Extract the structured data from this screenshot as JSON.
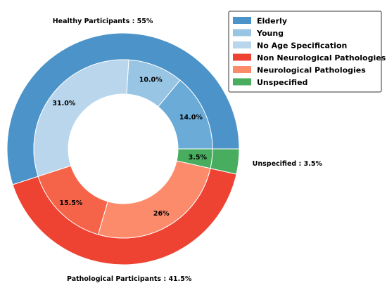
{
  "chart_data": {
    "type": "pie",
    "style": "nested-donut",
    "outer_ring": [
      {
        "name": "Healthy Participants",
        "value": 55,
        "label": "Healthy Participants : 55%",
        "color": "#4b93c9"
      },
      {
        "name": "Pathological Participants",
        "value": 41.5,
        "label": "Pathological Participants : 41.5%",
        "color": "#ee4333"
      },
      {
        "name": "Unspecified",
        "value": 3.5,
        "label": "Unspecified : 3.5%",
        "color": "#49ad5f"
      }
    ],
    "inner_ring": [
      {
        "name": "Elderly",
        "value": 14.0,
        "label": "14.0%",
        "color": "#6aabd7"
      },
      {
        "name": "Young",
        "value": 10.0,
        "label": "10.0%",
        "color": "#98c5e4"
      },
      {
        "name": "No Age Specification",
        "value": 31.0,
        "label": "31.0%",
        "color": "#b9d6ec"
      },
      {
        "name": "Non Neurological Pathologies",
        "value": 15.5,
        "label": "15.5%",
        "color": "#f56448"
      },
      {
        "name": "Neurological Pathologies",
        "value": 26,
        "label": "26%",
        "color": "#fc8b6c"
      },
      {
        "name": "Unspecified",
        "value": 3.5,
        "label": "3.5%",
        "color": "#49ad5f"
      }
    ],
    "legend": {
      "position": "top-right",
      "entries": [
        {
          "label": "Elderly",
          "color": "#4b93c9"
        },
        {
          "label": "Young",
          "color": "#98c5e4"
        },
        {
          "label": "No Age Specification",
          "color": "#b9d6ec"
        },
        {
          "label": "Non Neurological Pathologies",
          "color": "#ee4333"
        },
        {
          "label": "Neurological Pathologies",
          "color": "#fc8b6c"
        },
        {
          "label": "Unspecified",
          "color": "#49ad5f"
        }
      ]
    },
    "start_angle_deg": 0,
    "direction": "counterclockwise"
  }
}
